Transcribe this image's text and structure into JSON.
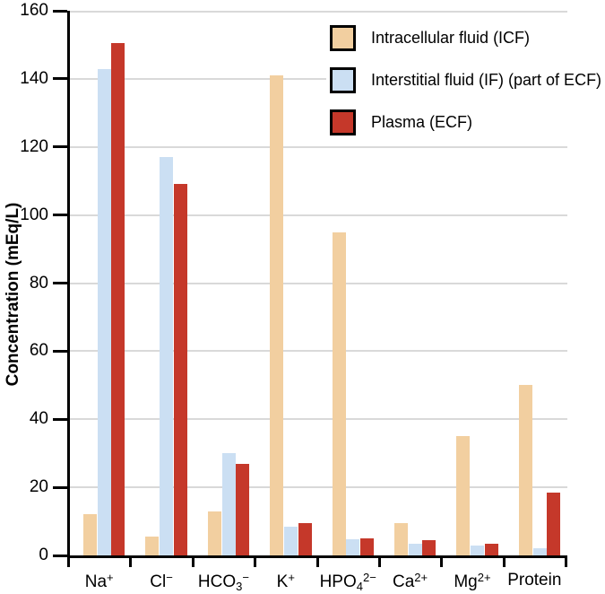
{
  "chart_data": {
    "type": "bar",
    "title": "",
    "xlabel": "",
    "ylabel": "Concentration (mEq/L)",
    "ylim": [
      0,
      160
    ],
    "yticks": [
      0,
      20,
      40,
      60,
      80,
      100,
      120,
      140,
      160
    ],
    "grid": true,
    "legend_position": "top-right",
    "categories": [
      {
        "base": "Na",
        "sub": "",
        "sup": "+",
        "plain": "Na+"
      },
      {
        "base": "Cl",
        "sub": "",
        "sup": "−",
        "plain": "Cl−"
      },
      {
        "base": "HCO",
        "sub": "3",
        "sup": "−",
        "plain": "HCO3−"
      },
      {
        "base": "K",
        "sub": "",
        "sup": "+",
        "plain": "K+"
      },
      {
        "base": "HPO",
        "sub": "4",
        "sup": "2−",
        "plain": "HPO42−"
      },
      {
        "base": "Ca",
        "sub": "",
        "sup": "2+",
        "plain": "Ca2+"
      },
      {
        "base": "Mg",
        "sub": "",
        "sup": "2+",
        "plain": "Mg2+"
      },
      {
        "base": "Protein",
        "sub": "",
        "sup": "",
        "plain": "Protein"
      }
    ],
    "series": [
      {
        "name": "Intracellular fluid (ICF)",
        "color": "#F2CFA0",
        "values": [
          12,
          5.5,
          13,
          141,
          95,
          9.5,
          35,
          50
        ]
      },
      {
        "name": "Interstitial fluid (IF) (part of ECF)",
        "color": "#CBDFF3",
        "values": [
          143,
          117,
          30,
          8.5,
          4.8,
          3.5,
          3,
          2
        ]
      },
      {
        "name": "Plasma (ECF)",
        "color": "#C5382A",
        "values": [
          150.5,
          109,
          27,
          9.5,
          5,
          4.5,
          3.5,
          18.5
        ]
      }
    ]
  },
  "colors": {
    "gridline": "#D9D9D9",
    "axis": "#000000",
    "swatch_border": "#000000",
    "background": "#FFFFFF"
  }
}
